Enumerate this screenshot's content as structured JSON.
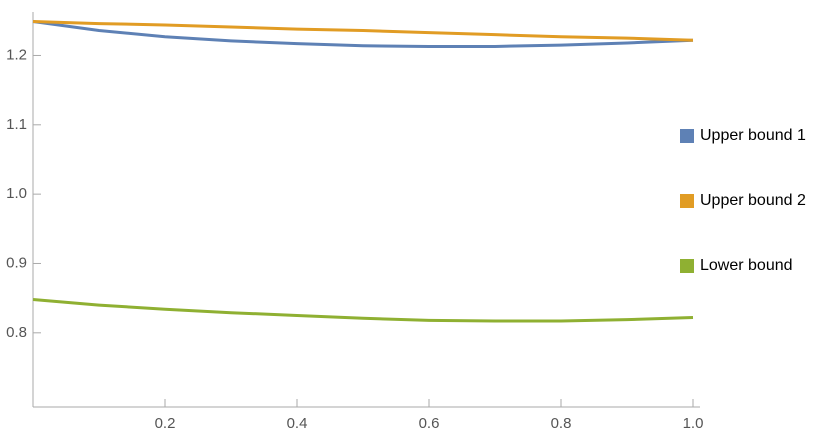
{
  "chart_data": {
    "type": "line",
    "x": [
      0,
      0.1,
      0.2,
      0.3,
      0.4,
      0.5,
      0.6,
      0.7,
      0.8,
      0.9,
      1
    ],
    "series": [
      {
        "name": "Upper bound 1",
        "color": "#5e81b5",
        "values": [
          1.249,
          1.236,
          1.227,
          1.221,
          1.217,
          1.214,
          1.213,
          1.213,
          1.215,
          1.218,
          1.222
        ]
      },
      {
        "name": "Upper bound 2",
        "color": "#e19c24",
        "values": [
          1.249,
          1.246,
          1.244,
          1.241,
          1.238,
          1.236,
          1.233,
          1.23,
          1.227,
          1.225,
          1.222
        ]
      },
      {
        "name": "Lower bound",
        "color": "#8fb032",
        "values": [
          0.848,
          0.84,
          0.834,
          0.829,
          0.825,
          0.821,
          0.818,
          0.817,
          0.817,
          0.819,
          0.822
        ]
      }
    ],
    "xlim": [
      0,
      1
    ],
    "xticks": [
      0.2,
      0.4,
      0.6,
      0.8,
      {
        "value": 1,
        "label": "1.0"
      }
    ],
    "ylim": [
      0.693,
      1.28
    ],
    "yticks": [
      0.8,
      0.9,
      {
        "value": 1,
        "label": "1.0"
      },
      1.1,
      1.2
    ],
    "legend": "right"
  }
}
